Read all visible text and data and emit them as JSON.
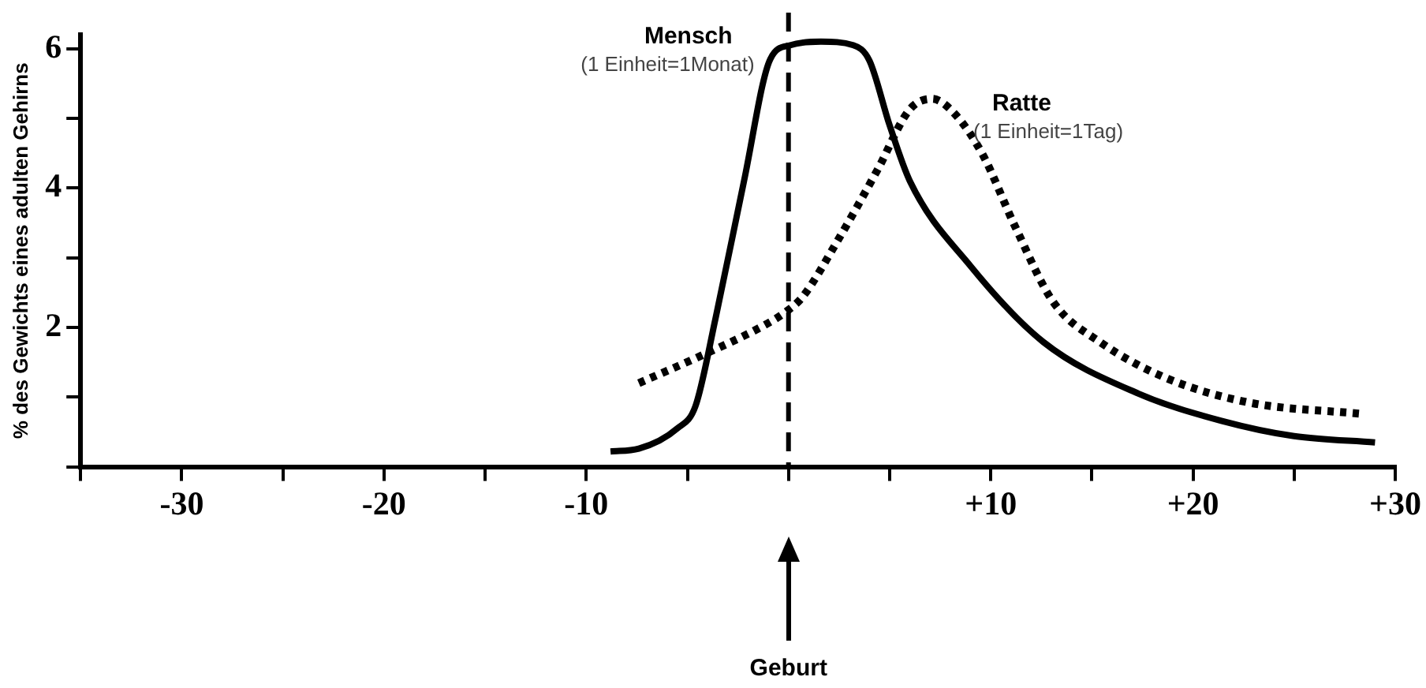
{
  "chart_data": {
    "type": "line",
    "ylabel": "% des Gewichts eines adulten Gehirns",
    "xlim": [
      -35,
      30
    ],
    "xticks": [
      {
        "value": -35,
        "label": null
      },
      {
        "value": -30,
        "label": "-30"
      },
      {
        "value": -25,
        "label": null
      },
      {
        "value": -20,
        "label": "-20"
      },
      {
        "value": -15,
        "label": null
      },
      {
        "value": -10,
        "label": "-10"
      },
      {
        "value": -5,
        "label": null
      },
      {
        "value": 0,
        "label": null
      },
      {
        "value": 5,
        "label": null
      },
      {
        "value": 10,
        "label": "+10"
      },
      {
        "value": 15,
        "label": null
      },
      {
        "value": 20,
        "label": "+20"
      },
      {
        "value": 25,
        "label": null
      },
      {
        "value": 30,
        "label": "+30"
      }
    ],
    "ylim": [
      0,
      6.2
    ],
    "yticks": [
      {
        "value": 0,
        "label": null
      },
      {
        "value": 1,
        "label": null
      },
      2,
      {
        "value": 3,
        "label": null
      },
      4,
      {
        "value": 5,
        "label": null
      },
      6
    ],
    "grid": false,
    "legend": false,
    "marker": "none",
    "series": [
      {
        "name": "Mensch",
        "color": "#000000",
        "line_style": "solid",
        "x": [
          -8.8,
          -7.4,
          -5.5,
          -4.6,
          -3.6,
          -2.2,
          -0.9,
          0.1,
          1.6,
          3.2,
          4.0,
          5.0,
          6.0,
          9.0,
          12.6,
          17.3,
          21.4,
          25.0,
          29.0
        ],
        "values": [
          0.22,
          0.26,
          0.55,
          0.87,
          2.14,
          4.1,
          5.85,
          6.05,
          6.1,
          6.05,
          5.83,
          4.9,
          4.1,
          2.88,
          1.79,
          1.05,
          0.66,
          0.44,
          0.35
        ]
      },
      {
        "name": "Ratte",
        "color": "#000000",
        "line_style": "dotted",
        "x": [
          -7.4,
          -4.5,
          -1.2,
          -0.1,
          0.7,
          2.4,
          4.4,
          6.0,
          7.1,
          8.2,
          9.6,
          11.2,
          13.1,
          15.4,
          18.7,
          22.8,
          28.3
        ],
        "values": [
          1.2,
          1.57,
          2.03,
          2.23,
          2.44,
          3.23,
          4.26,
          5.13,
          5.28,
          5.07,
          4.48,
          3.45,
          2.36,
          1.79,
          1.27,
          0.92,
          0.76
        ]
      }
    ],
    "annotations": [
      "(1 Einheit=1Monat)",
      "(1 Einheit=1Tag)",
      "Geburt"
    ],
    "ref_lines": [
      {
        "axis": "x",
        "value": 0,
        "color": "#000000",
        "line_style": "dashed"
      }
    ]
  }
}
